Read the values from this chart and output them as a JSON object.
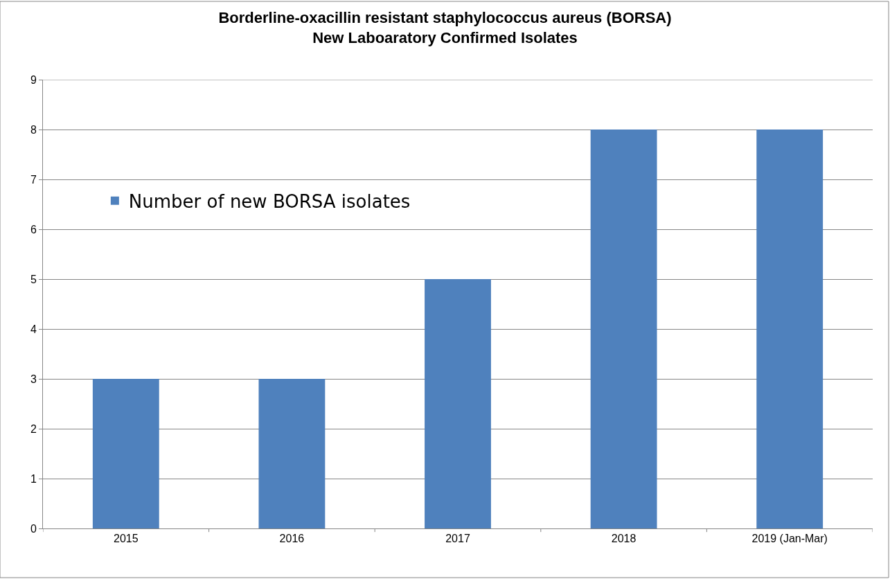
{
  "chart_data": {
    "type": "bar",
    "title": "Borderline-oxacillin resistant staphylococcus aureus (BORSA)\nNew Laboaratory Confirmed Isolates",
    "categories": [
      "2015",
      "2016",
      "2017",
      "2018",
      "2019 (Jan-Mar)"
    ],
    "series": [
      {
        "name": "Number of new BORSA isolates",
        "color": "#4f81bd",
        "values": [
          3,
          3,
          5,
          8,
          8
        ]
      }
    ],
    "ylim": [
      0,
      9
    ],
    "yticks": [
      0,
      1,
      2,
      3,
      4,
      5,
      6,
      7,
      8,
      9
    ],
    "grid": "y",
    "legend": "top left"
  }
}
